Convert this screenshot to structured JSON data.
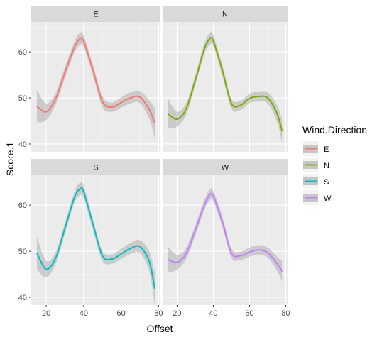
{
  "chart_data": {
    "type": "line",
    "xlabel": "Offset",
    "ylabel": "Score.1",
    "xlim": [
      12,
      81
    ],
    "ylim": [
      38.3,
      66.5
    ],
    "xticks": [
      20,
      40,
      60,
      80
    ],
    "yticks": [
      40,
      50,
      60
    ],
    "legend": {
      "title": "Wind.Direction",
      "position": "right",
      "entries": [
        "E",
        "N",
        "S",
        "W"
      ]
    },
    "grid": true,
    "panels": [
      {
        "label": "E",
        "color": "#F8766D",
        "x": [
          15,
          20,
          25,
          30,
          35,
          38,
          40,
          45,
          50,
          55,
          60,
          65,
          70,
          75,
          78
        ],
        "y": [
          48.2,
          47.0,
          49.8,
          55.5,
          61.0,
          62.8,
          62.3,
          56.0,
          49.2,
          48.0,
          49.0,
          50.0,
          50.2,
          47.5,
          44.5
        ],
        "se": [
          3.5,
          1.8,
          1.3,
          1.2,
          1.2,
          1.3,
          1.2,
          1.2,
          1.2,
          1.0,
          1.1,
          1.2,
          1.3,
          2.0,
          3.2
        ]
      },
      {
        "label": "N",
        "color": "#7CAE00",
        "x": [
          15,
          20,
          25,
          30,
          35,
          38,
          40,
          45,
          50,
          55,
          60,
          65,
          70,
          75,
          78
        ],
        "y": [
          46.6,
          45.4,
          47.6,
          53.8,
          60.6,
          62.8,
          62.4,
          56.0,
          48.8,
          48.4,
          49.9,
          50.3,
          50.0,
          46.8,
          42.8
        ],
        "se": [
          3.3,
          1.6,
          1.3,
          1.1,
          1.2,
          1.3,
          1.2,
          1.2,
          1.1,
          1.0,
          1.0,
          1.1,
          1.2,
          1.8,
          2.5
        ]
      },
      {
        "label": "S",
        "color": "#00BFC4",
        "x": [
          15,
          20,
          25,
          30,
          35,
          38,
          40,
          45,
          50,
          55,
          60,
          65,
          70,
          75,
          78
        ],
        "y": [
          49.6,
          46.1,
          48.5,
          55.0,
          61.6,
          63.5,
          62.9,
          55.8,
          49.0,
          48.3,
          49.4,
          50.6,
          51.0,
          47.8,
          41.8
        ],
        "se": [
          3.5,
          1.8,
          1.3,
          1.2,
          1.2,
          1.4,
          1.3,
          1.2,
          1.1,
          1.0,
          1.1,
          1.2,
          1.4,
          2.2,
          3.6
        ]
      },
      {
        "label": "W",
        "color": "#C77CFF",
        "x": [
          15,
          20,
          25,
          30,
          35,
          38,
          40,
          45,
          50,
          55,
          60,
          65,
          70,
          75,
          78
        ],
        "y": [
          48.2,
          47.6,
          49.5,
          54.5,
          60.0,
          62.2,
          62.0,
          56.4,
          49.6,
          49.0,
          49.8,
          50.3,
          49.7,
          47.4,
          45.6
        ],
        "se": [
          2.8,
          1.6,
          1.2,
          1.1,
          1.1,
          1.2,
          1.1,
          1.1,
          1.0,
          0.9,
          1.0,
          1.0,
          1.1,
          1.5,
          2.2
        ]
      }
    ]
  }
}
